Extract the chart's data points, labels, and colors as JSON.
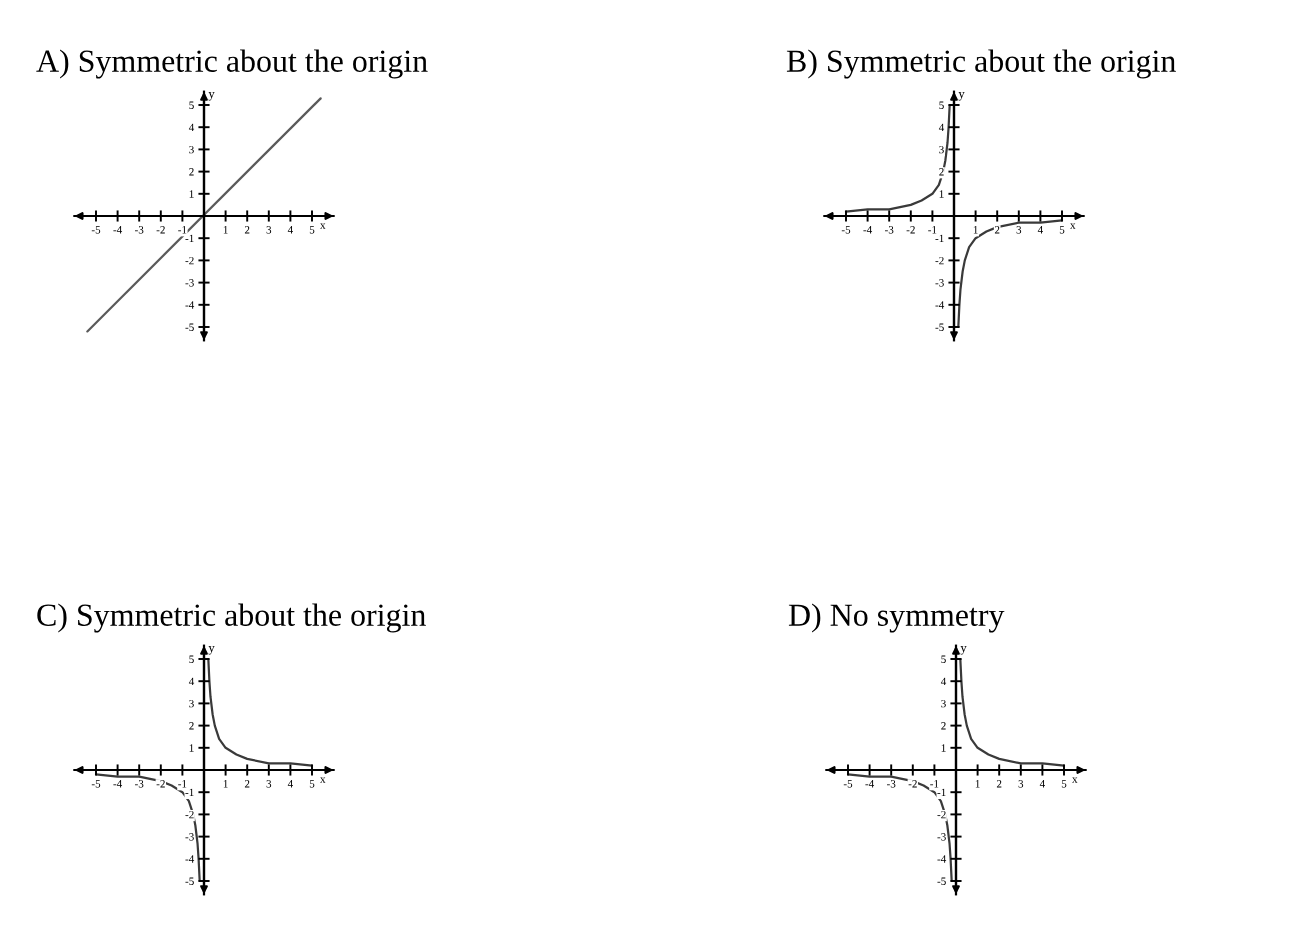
{
  "chart_data": [
    {
      "type": "line",
      "title": "A) Symmetric about the origin",
      "xlabel": "x",
      "ylabel": "y",
      "xlim": [
        -6,
        6
      ],
      "ylim": [
        -5.6,
        5.6
      ],
      "xticks": [
        -5,
        -4,
        -3,
        -2,
        -1,
        1,
        2,
        3,
        4,
        5
      ],
      "yticks": [
        -5,
        -4,
        -3,
        -2,
        -1,
        1,
        2,
        3,
        4,
        5
      ],
      "series": [
        {
          "color": "#5a5a5a",
          "x": [
            -5.4,
            5.4
          ],
          "values": [
            -5.2,
            5.3
          ]
        }
      ]
    },
    {
      "type": "line",
      "title": "B) Symmetric about the origin",
      "xlabel": "x",
      "ylabel": "y",
      "xlim": [
        -6,
        6
      ],
      "ylim": [
        -5.6,
        5.6
      ],
      "xticks": [
        -5,
        -4,
        -3,
        -2,
        -1,
        1,
        2,
        3,
        4,
        5
      ],
      "yticks": [
        -5,
        -4,
        -3,
        -2,
        -1,
        1,
        2,
        3,
        4,
        5
      ],
      "series": [
        {
          "color": "#3a3a3a",
          "x": [
            -5,
            -4,
            -3,
            -2,
            -1.5,
            -1,
            -0.7,
            -0.5,
            -0.4,
            -0.3,
            -0.25,
            -0.2
          ],
          "values": [
            0.2,
            0.3,
            0.3,
            0.5,
            0.7,
            1,
            1.4,
            2,
            2.5,
            3.3,
            4,
            5
          ]
        },
        {
          "color": "#3a3a3a",
          "x": [
            0.2,
            0.25,
            0.3,
            0.4,
            0.5,
            0.7,
            1,
            1.5,
            2,
            3,
            4,
            5
          ],
          "values": [
            -5,
            -4,
            -3.3,
            -2.5,
            -2,
            -1.4,
            -1,
            -0.7,
            -0.5,
            -0.3,
            -0.3,
            -0.2
          ]
        }
      ]
    },
    {
      "type": "line",
      "title": "C) Symmetric about the origin",
      "xlabel": "x",
      "ylabel": "y",
      "xlim": [
        -6,
        6
      ],
      "ylim": [
        -5.6,
        5.6
      ],
      "xticks": [
        -5,
        -4,
        -3,
        -2,
        -1,
        1,
        2,
        3,
        4,
        5
      ],
      "yticks": [
        -5,
        -4,
        -3,
        -2,
        -1,
        1,
        2,
        3,
        4,
        5
      ],
      "series": [
        {
          "color": "#3a3a3a",
          "x": [
            0.2,
            0.25,
            0.3,
            0.4,
            0.5,
            0.7,
            1,
            1.5,
            2,
            3,
            4,
            5
          ],
          "values": [
            5,
            4,
            3.3,
            2.5,
            2,
            1.4,
            1,
            0.7,
            0.5,
            0.3,
            0.3,
            0.2
          ]
        },
        {
          "color": "#3a3a3a",
          "x": [
            -5,
            -4,
            -3,
            -2,
            -1.5,
            -1,
            -0.7,
            -0.5,
            -0.4,
            -0.3,
            -0.25,
            -0.2
          ],
          "values": [
            -0.2,
            -0.3,
            -0.3,
            -0.5,
            -0.7,
            -1,
            -1.4,
            -2,
            -2.5,
            -3.3,
            -4,
            -5
          ]
        }
      ]
    },
    {
      "type": "line",
      "title": "D) No symmetry",
      "xlabel": "x",
      "ylabel": "y",
      "xlim": [
        -6,
        6
      ],
      "ylim": [
        -5.6,
        5.6
      ],
      "xticks": [
        -5,
        -4,
        -3,
        -2,
        -1,
        1,
        2,
        3,
        4,
        5
      ],
      "yticks": [
        -5,
        -4,
        -3,
        -2,
        -1,
        1,
        2,
        3,
        4,
        5
      ],
      "series": [
        {
          "color": "#3a3a3a",
          "x": [
            0.2,
            0.25,
            0.3,
            0.4,
            0.5,
            0.7,
            1,
            1.5,
            2,
            3,
            4,
            5
          ],
          "values": [
            5,
            4,
            3.3,
            2.5,
            2,
            1.4,
            1,
            0.7,
            0.5,
            0.3,
            0.3,
            0.2
          ]
        },
        {
          "color": "#3a3a3a",
          "x": [
            -5,
            -4,
            -3,
            -2,
            -1.5,
            -1,
            -0.7,
            -0.5,
            -0.4,
            -0.3,
            -0.25,
            -0.2
          ],
          "values": [
            -0.2,
            -0.3,
            -0.3,
            -0.5,
            -0.7,
            -1,
            -1.4,
            -2,
            -2.5,
            -3.3,
            -4,
            -5
          ]
        }
      ]
    }
  ]
}
